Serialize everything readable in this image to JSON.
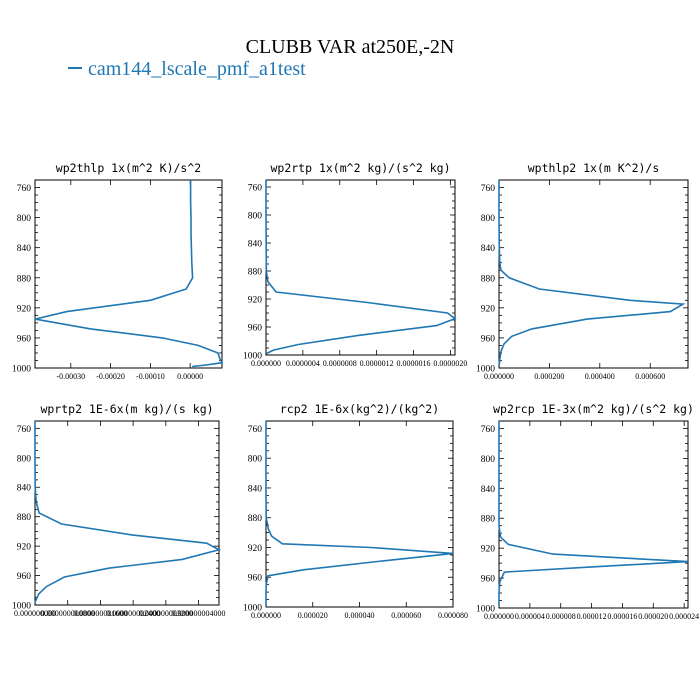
{
  "title": "CLUBB VAR at250E,-2N",
  "legend": {
    "label": "cam144_lscale_pmf_a1test",
    "color": "#1f77b4"
  },
  "chart_data": [
    {
      "type": "line",
      "title": "wp2thlp   1x(m^2 K)/s^2",
      "y_ticks": [
        "760",
        "800",
        "840",
        "880",
        "920",
        "960",
        "1000"
      ],
      "ylim": [
        1000,
        750
      ],
      "x_ticks": [
        {
          "value": -0.0003,
          "label": "-0.00030"
        },
        {
          "value": -0.0002,
          "label": "-0.00020"
        },
        {
          "value": -0.0001,
          "label": "-0.00010"
        },
        {
          "value": 0,
          "label": "0.00000"
        }
      ],
      "xlim": [
        -0.00039,
        8e-05
      ],
      "series": [
        {
          "y": [
            750,
            760,
            780,
            800,
            820,
            840,
            860,
            880,
            895,
            910,
            925,
            935,
            948,
            960,
            970,
            980,
            988,
            993,
            996,
            998
          ],
          "x": [
            1e-06,
            1e-06,
            1e-06,
            2e-06,
            2e-06,
            3e-06,
            4e-06,
            6e-06,
            -1e-05,
            -0.0001,
            -0.00031,
            -0.00039,
            -0.00025,
            -7e-05,
            2e-05,
            7e-05,
            7.5e-05,
            8e-05,
            4e-05,
            5e-06
          ]
        }
      ]
    },
    {
      "type": "line",
      "title": "wp2rtp   1x(m^2 kg)/(s^2 kg)",
      "y_ticks": [
        "760",
        "800",
        "840",
        "880",
        "920",
        "960",
        "1000"
      ],
      "ylim": [
        1000,
        750
      ],
      "x_ticks": [
        {
          "value": 0,
          "label": "0.000000"
        },
        {
          "value": 4e-07,
          "label": "0.0000004"
        },
        {
          "value": 8e-07,
          "label": "0.0000008"
        },
        {
          "value": 1.2e-06,
          "label": "0.0000012"
        },
        {
          "value": 1.6e-06,
          "label": "0.0000016"
        },
        {
          "value": 2e-06,
          "label": "0.0000020"
        }
      ],
      "xlim": [
        0,
        2.05e-06
      ],
      "series": [
        {
          "y": [
            750,
            800,
            850,
            880,
            895,
            910,
            925,
            940,
            948,
            958,
            972,
            985,
            993,
            998
          ],
          "x": [
            0,
            0,
            2e-09,
            4e-09,
            2e-08,
            1.1e-07,
            1.1e-06,
            1.97e-06,
            2.05e-06,
            1.85e-06,
            1e-06,
            3.5e-07,
            8e-08,
            3e-09
          ]
        }
      ]
    },
    {
      "type": "line",
      "title": "wpthlp2   1x(m K^2)/s",
      "y_ticks": [
        "760",
        "800",
        "840",
        "880",
        "920",
        "960",
        "1000"
      ],
      "ylim": [
        1000,
        750
      ],
      "x_ticks": [
        {
          "value": 0,
          "label": "0.000000"
        },
        {
          "value": 0.0002,
          "label": "0.000200"
        },
        {
          "value": 0.0004,
          "label": "0.000400"
        },
        {
          "value": 0.0006,
          "label": "0.000600"
        }
      ],
      "xlim": [
        0,
        0.00075
      ],
      "series": [
        {
          "y": [
            750,
            800,
            840,
            860,
            870,
            880,
            895,
            910,
            915,
            925,
            935,
            948,
            958,
            968,
            978,
            988,
            995,
            998
          ],
          "x": [
            0,
            0,
            1e-06,
            3e-06,
            8e-06,
            4e-05,
            0.00016,
            0.00052,
            0.00073,
            0.00068,
            0.00035,
            0.00013,
            5e-05,
            2e-05,
            8e-06,
            3e-06,
            1e-06,
            0
          ]
        }
      ]
    },
    {
      "type": "line",
      "title": "wprtp2   1E-6x(m kg)/(s kg)",
      "y_ticks": [
        "760",
        "800",
        "840",
        "880",
        "920",
        "960",
        "1000"
      ],
      "ylim": [
        1000,
        750
      ],
      "x_ticks": [
        {
          "value": 0,
          "label": "0.000000000"
        },
        {
          "value": 8e-10,
          "label": "0.000000000800"
        },
        {
          "value": 1.6e-09,
          "label": "0.000000001600"
        },
        {
          "value": 2.4e-09,
          "label": "0.000000002400"
        },
        {
          "value": 3.2e-09,
          "label": "0.000000003200"
        },
        {
          "value": 4e-09,
          "label": "0.000000004000"
        }
      ],
      "xlim": [
        0,
        4.5e-09
      ],
      "series": [
        {
          "y": [
            750,
            800,
            840,
            860,
            875,
            890,
            905,
            916,
            925,
            938,
            950,
            962,
            975,
            985,
            995,
            998
          ],
          "x": [
            0,
            0,
            5e-12,
            3e-11,
            1e-10,
            6.5e-10,
            2.4e-09,
            4.2e-09,
            4.5e-09,
            3.6e-09,
            1.8e-09,
            7.2e-10,
            2.8e-10,
            9e-11,
            1e-11,
            0
          ]
        }
      ]
    },
    {
      "type": "line",
      "title": "rcp2   1E-6x(kg^2)/(kg^2)",
      "y_ticks": [
        "760",
        "800",
        "840",
        "880",
        "920",
        "960",
        "1000"
      ],
      "ylim": [
        1000,
        750
      ],
      "x_ticks": [
        {
          "value": 0,
          "label": "0.000000"
        },
        {
          "value": 2e-05,
          "label": "0.000020"
        },
        {
          "value": 4e-05,
          "label": "0.000040"
        },
        {
          "value": 6e-05,
          "label": "0.000060"
        },
        {
          "value": 8e-05,
          "label": "0.000080"
        }
      ],
      "xlim": [
        0,
        8e-05
      ],
      "series": [
        {
          "y": [
            750,
            800,
            850,
            880,
            895,
            905,
            915,
            920,
            928,
            938,
            950,
            958,
            970,
            980,
            990,
            998
          ],
          "x": [
            0,
            0,
            0,
            1e-07,
            1e-06,
            2.5e-06,
            7e-06,
            4.5e-05,
            8e-05,
            5e-05,
            1.6e-05,
            8e-07,
            1e-07,
            0,
            0,
            0
          ]
        }
      ]
    },
    {
      "type": "line",
      "title": "wp2rcp   1E-3x(m^2 kg)/(s^2 kg)",
      "y_ticks": [
        "760",
        "800",
        "840",
        "880",
        "920",
        "960",
        "1000"
      ],
      "ylim": [
        1000,
        750
      ],
      "x_ticks": [
        {
          "value": 0,
          "label": "0.000000"
        },
        {
          "value": 4e-06,
          "label": "0.000004"
        },
        {
          "value": 8e-06,
          "label": "0.000008"
        },
        {
          "value": 1.2e-05,
          "label": "0.000012"
        },
        {
          "value": 1.6e-05,
          "label": "0.000016"
        },
        {
          "value": 2e-05,
          "label": "0.000020"
        },
        {
          "value": 2.4e-05,
          "label": "0.000024"
        }
      ],
      "xlim": [
        0,
        2.45e-05
      ],
      "series": [
        {
          "y": [
            750,
            800,
            860,
            890,
            905,
            915,
            928,
            938,
            945,
            952,
            965,
            980,
            990,
            998
          ],
          "x": [
            0,
            0,
            0,
            0,
            2e-07,
            1.2e-06,
            7e-06,
            2.45e-05,
            1.2e-05,
            7e-07,
            1e-07,
            0,
            0,
            0
          ]
        }
      ]
    }
  ]
}
